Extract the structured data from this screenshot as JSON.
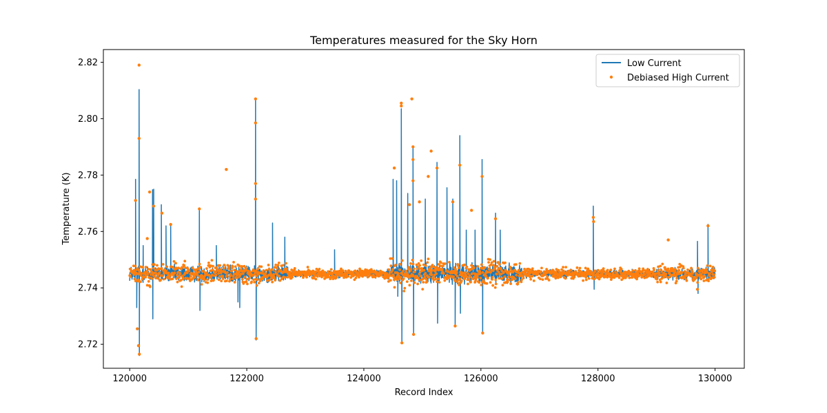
{
  "chart_data": {
    "type": "line",
    "title": "Temperatures measured for the Sky Horn",
    "xlabel": "Record Index",
    "ylabel": "Temperature (K)",
    "xlim": [
      119550,
      130500
    ],
    "ylim": [
      2.7115,
      2.8245
    ],
    "xticks": [
      120000,
      122000,
      124000,
      126000,
      128000,
      130000
    ],
    "yticks": [
      2.72,
      2.74,
      2.76,
      2.78,
      2.8,
      2.82
    ],
    "ytick_labels": [
      "2.72",
      "2.74",
      "2.76",
      "2.78",
      "2.80",
      "2.82"
    ],
    "legend_position": "upper right",
    "colors": {
      "low": "#1f77b4",
      "high": "#ff7f0e"
    },
    "baseline": 2.745,
    "x_range": [
      120000,
      130000
    ],
    "series": [
      {
        "name": "Low Current",
        "kind": "line",
        "noise_segments": [
          {
            "x": [
              120000,
              122700
            ],
            "amplitude": 0.003
          },
          {
            "x": [
              122700,
              124400
            ],
            "amplitude": 0.0013
          },
          {
            "x": [
              124400,
              126700
            ],
            "amplitude": 0.0035
          },
          {
            "x": [
              126700,
              129000
            ],
            "amplitude": 0.0015
          },
          {
            "x": [
              129000,
              130000
            ],
            "amplitude": 0.0022
          }
        ],
        "spikes": [
          {
            "x": 120100,
            "y": 2.7785
          },
          {
            "x": 120120,
            "y": 2.733
          },
          {
            "x": 120160,
            "y": 2.8103
          },
          {
            "x": 120165,
            "y": 2.716
          },
          {
            "x": 120230,
            "y": 2.755
          },
          {
            "x": 120390,
            "y": 2.7748
          },
          {
            "x": 120395,
            "y": 2.729
          },
          {
            "x": 120410,
            "y": 2.775
          },
          {
            "x": 120540,
            "y": 2.7695
          },
          {
            "x": 120620,
            "y": 2.762
          },
          {
            "x": 120700,
            "y": 2.7625
          },
          {
            "x": 121190,
            "y": 2.768
          },
          {
            "x": 121200,
            "y": 2.732
          },
          {
            "x": 121480,
            "y": 2.755
          },
          {
            "x": 121850,
            "y": 2.735
          },
          {
            "x": 121880,
            "y": 2.733
          },
          {
            "x": 122150,
            "y": 2.807
          },
          {
            "x": 122160,
            "y": 2.7215
          },
          {
            "x": 122440,
            "y": 2.763
          },
          {
            "x": 122650,
            "y": 2.758
          },
          {
            "x": 123500,
            "y": 2.7535
          },
          {
            "x": 124500,
            "y": 2.7785
          },
          {
            "x": 124560,
            "y": 2.778
          },
          {
            "x": 124580,
            "y": 2.737
          },
          {
            "x": 124640,
            "y": 2.8035
          },
          {
            "x": 124650,
            "y": 2.7205
          },
          {
            "x": 124750,
            "y": 2.7735
          },
          {
            "x": 124840,
            "y": 2.7895
          },
          {
            "x": 124850,
            "y": 2.7235
          },
          {
            "x": 125050,
            "y": 2.7715
          },
          {
            "x": 125250,
            "y": 2.7845
          },
          {
            "x": 125260,
            "y": 2.7275
          },
          {
            "x": 125420,
            "y": 2.7755
          },
          {
            "x": 125520,
            "y": 2.7715
          },
          {
            "x": 125560,
            "y": 2.727
          },
          {
            "x": 125640,
            "y": 2.794
          },
          {
            "x": 125650,
            "y": 2.731
          },
          {
            "x": 125750,
            "y": 2.7605
          },
          {
            "x": 125900,
            "y": 2.7605
          },
          {
            "x": 126020,
            "y": 2.7855
          },
          {
            "x": 126030,
            "y": 2.7245
          },
          {
            "x": 126250,
            "y": 2.7665
          },
          {
            "x": 126330,
            "y": 2.7605
          },
          {
            "x": 127920,
            "y": 2.769
          },
          {
            "x": 127935,
            "y": 2.7395
          },
          {
            "x": 129700,
            "y": 2.7565
          },
          {
            "x": 129710,
            "y": 2.738
          },
          {
            "x": 129880,
            "y": 2.7625
          }
        ]
      },
      {
        "name": "Debiased High Current",
        "kind": "scatter",
        "outliers": [
          {
            "x": 120160,
            "y": 2.819
          },
          {
            "x": 120160,
            "y": 2.793
          },
          {
            "x": 120165,
            "y": 2.7165
          },
          {
            "x": 120150,
            "y": 2.7195
          },
          {
            "x": 120100,
            "y": 2.771
          },
          {
            "x": 120130,
            "y": 2.7255
          },
          {
            "x": 120340,
            "y": 2.774
          },
          {
            "x": 120410,
            "y": 2.769
          },
          {
            "x": 120300,
            "y": 2.7575
          },
          {
            "x": 121650,
            "y": 2.782
          },
          {
            "x": 121190,
            "y": 2.768
          },
          {
            "x": 122150,
            "y": 2.807
          },
          {
            "x": 122150,
            "y": 2.7985
          },
          {
            "x": 122150,
            "y": 2.777
          },
          {
            "x": 122150,
            "y": 2.7715
          },
          {
            "x": 122160,
            "y": 2.722
          },
          {
            "x": 124520,
            "y": 2.7825
          },
          {
            "x": 124640,
            "y": 2.8055
          },
          {
            "x": 124640,
            "y": 2.8045
          },
          {
            "x": 124650,
            "y": 2.7205
          },
          {
            "x": 124820,
            "y": 2.807
          },
          {
            "x": 124840,
            "y": 2.79
          },
          {
            "x": 124840,
            "y": 2.7855
          },
          {
            "x": 124840,
            "y": 2.778
          },
          {
            "x": 124850,
            "y": 2.7235
          },
          {
            "x": 125150,
            "y": 2.7885
          },
          {
            "x": 125100,
            "y": 2.7795
          },
          {
            "x": 125250,
            "y": 2.7825
          },
          {
            "x": 125520,
            "y": 2.7705
          },
          {
            "x": 125640,
            "y": 2.7835
          },
          {
            "x": 125560,
            "y": 2.7265
          },
          {
            "x": 126020,
            "y": 2.7795
          },
          {
            "x": 126030,
            "y": 2.724
          },
          {
            "x": 126250,
            "y": 2.7645
          },
          {
            "x": 125840,
            "y": 2.7675
          },
          {
            "x": 124950,
            "y": 2.7705
          },
          {
            "x": 124780,
            "y": 2.7695
          },
          {
            "x": 127920,
            "y": 2.765
          },
          {
            "x": 127925,
            "y": 2.7635
          },
          {
            "x": 129200,
            "y": 2.757
          },
          {
            "x": 129880,
            "y": 2.762
          },
          {
            "x": 129700,
            "y": 2.7395
          },
          {
            "x": 120700,
            "y": 2.7625
          },
          {
            "x": 120550,
            "y": 2.7665
          }
        ]
      }
    ]
  }
}
